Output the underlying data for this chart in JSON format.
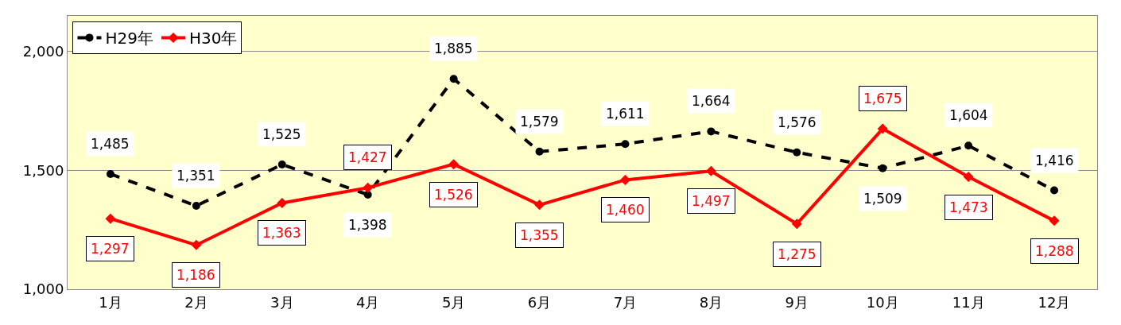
{
  "chart_data": {
    "type": "line",
    "categories": [
      "1月",
      "2月",
      "3月",
      "4月",
      "5月",
      "6月",
      "7月",
      "8月",
      "9月",
      "10月",
      "11月",
      "12月"
    ],
    "series": [
      {
        "name": "H29年",
        "color": "#000000",
        "line_style": "dashed",
        "marker": "circle",
        "values": [
          1485,
          1351,
          1525,
          1398,
          1885,
          1579,
          1611,
          1664,
          1576,
          1509,
          1604,
          1416
        ],
        "value_labels": [
          "1,485",
          "1,351",
          "1,525",
          "1,398",
          "1,885",
          "1,579",
          "1,611",
          "1,664",
          "1,576",
          "1,509",
          "1,604",
          "1,416"
        ]
      },
      {
        "name": "H30年",
        "color": "#ff0000",
        "line_style": "solid",
        "marker": "diamond",
        "values": [
          1297,
          1186,
          1363,
          1427,
          1526,
          1355,
          1460,
          1497,
          1275,
          1675,
          1473,
          1288
        ],
        "value_labels": [
          "1,297",
          "1,186",
          "1,363",
          "1,427",
          "1,526",
          "1,355",
          "1,460",
          "1,497",
          "1,275",
          "1,675",
          "1,473",
          "1,288"
        ]
      }
    ],
    "ylim": [
      1000,
      2150
    ],
    "yticks": [
      {
        "value": 1000,
        "label": "1,000"
      },
      {
        "value": 1500,
        "label": "1,500"
      },
      {
        "value": 2000,
        "label": "2,000"
      }
    ],
    "grid": "y",
    "legend": "top left"
  }
}
